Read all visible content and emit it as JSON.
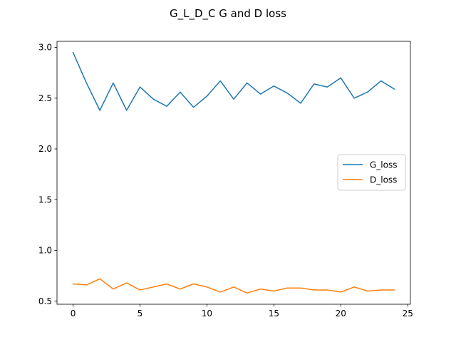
{
  "chart_data": {
    "type": "line",
    "title": "G_L_D_C G and D loss",
    "xlabel": "",
    "ylabel": "",
    "xlim": [
      -1.2,
      25.2
    ],
    "ylim": [
      0.47,
      3.06
    ],
    "xticks": [
      0,
      5,
      10,
      15,
      20,
      25
    ],
    "yticks": [
      0.5,
      1.0,
      1.5,
      2.0,
      2.5,
      3.0
    ],
    "xtick_labels": [
      "0",
      "5",
      "10",
      "15",
      "20",
      "25"
    ],
    "ytick_labels": [
      "0.5",
      "1.0",
      "1.5",
      "2.0",
      "2.5",
      "3.0"
    ],
    "grid": false,
    "legend_position": "center-right",
    "x": [
      0,
      1,
      2,
      3,
      4,
      5,
      6,
      7,
      8,
      9,
      10,
      11,
      12,
      13,
      14,
      15,
      16,
      17,
      18,
      19,
      20,
      21,
      22,
      23,
      24
    ],
    "series": [
      {
        "name": "G_loss",
        "color": "#1f77b4",
        "values": [
          2.95,
          2.65,
          2.38,
          2.65,
          2.38,
          2.61,
          2.49,
          2.42,
          2.56,
          2.41,
          2.52,
          2.67,
          2.49,
          2.65,
          2.54,
          2.62,
          2.55,
          2.45,
          2.64,
          2.61,
          2.7,
          2.5,
          2.56,
          2.67,
          2.59
        ]
      },
      {
        "name": "D_loss",
        "color": "#ff7f0e",
        "values": [
          0.67,
          0.66,
          0.72,
          0.62,
          0.68,
          0.61,
          0.64,
          0.67,
          0.62,
          0.67,
          0.64,
          0.59,
          0.64,
          0.58,
          0.62,
          0.6,
          0.63,
          0.63,
          0.61,
          0.61,
          0.59,
          0.64,
          0.6,
          0.61,
          0.61
        ]
      }
    ]
  }
}
